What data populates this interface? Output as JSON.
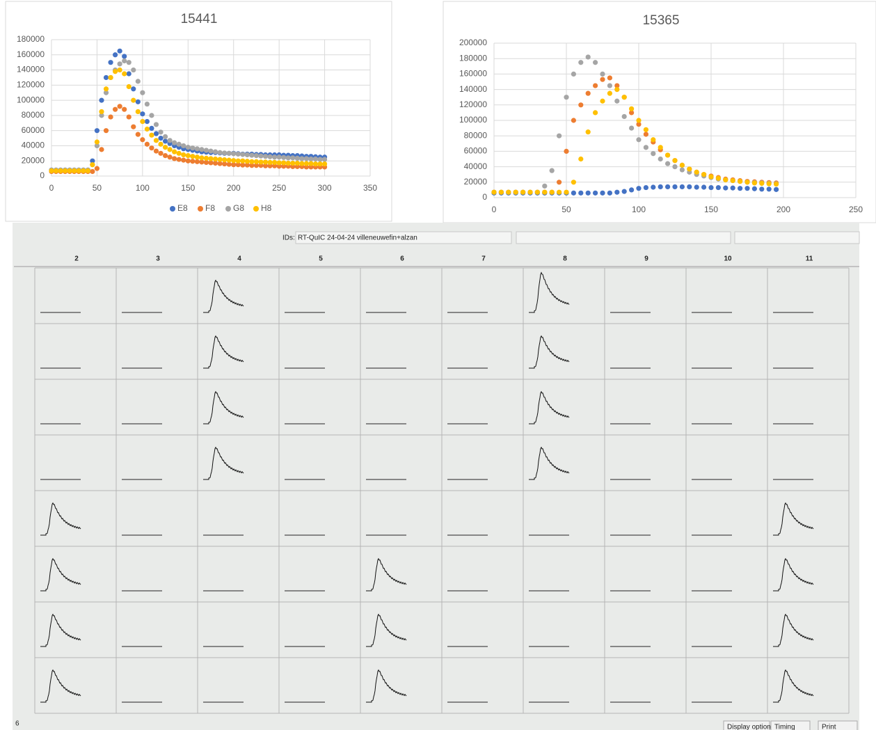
{
  "chart_data": [
    {
      "type": "scatter",
      "title": "15441",
      "x": [
        0,
        5,
        10,
        15,
        20,
        25,
        30,
        35,
        40,
        45,
        50,
        55,
        60,
        65,
        70,
        75,
        80,
        85,
        90,
        95,
        100,
        105,
        110,
        115,
        120,
        125,
        130,
        135,
        140,
        145,
        150,
        155,
        160,
        165,
        170,
        175,
        180,
        185,
        190,
        195,
        200,
        205,
        210,
        215,
        220,
        225,
        230,
        235,
        240,
        245,
        250,
        255,
        260,
        265,
        270,
        275,
        280,
        285,
        290,
        295,
        300
      ],
      "series": [
        {
          "name": "E8",
          "color": "#4472c4",
          "values": [
            8000,
            8000,
            8000,
            8000,
            8000,
            8000,
            8000,
            8000,
            8000,
            20000,
            60000,
            100000,
            130000,
            150000,
            160000,
            165000,
            158000,
            135000,
            115000,
            98000,
            82000,
            72000,
            63000,
            56000,
            50000,
            46000,
            43000,
            40000,
            38000,
            36000,
            35000,
            34000,
            33000,
            32000,
            31500,
            31000,
            31000,
            30500,
            30000,
            30000,
            30000,
            29500,
            29000,
            29000,
            29000,
            28500,
            28500,
            28000,
            28000,
            28000,
            28000,
            27500,
            27500,
            27000,
            27000,
            26500,
            26000,
            26000,
            25500,
            25000,
            25000
          ]
        },
        {
          "name": "F8",
          "color": "#ed7d31",
          "values": [
            6000,
            6000,
            6000,
            6000,
            6000,
            6000,
            6000,
            6000,
            6000,
            6000,
            10000,
            35000,
            60000,
            78000,
            88000,
            92000,
            88000,
            78000,
            65000,
            55000,
            48000,
            42000,
            37000,
            33000,
            30000,
            27000,
            25000,
            23000,
            22000,
            21000,
            20000,
            19500,
            19000,
            18500,
            18000,
            17500,
            17000,
            16500,
            16000,
            15500,
            15000,
            15000,
            14500,
            14500,
            14000,
            14000,
            14000,
            13500,
            13500,
            13500,
            13000,
            13000,
            13000,
            12500,
            12500,
            12500,
            12000,
            12000,
            12000,
            12000,
            12000
          ]
        },
        {
          "name": "G8",
          "color": "#a5a5a5",
          "values": [
            8000,
            8000,
            8000,
            8000,
            8000,
            8000,
            8000,
            8000,
            8000,
            15000,
            40000,
            80000,
            110000,
            130000,
            140000,
            148000,
            152000,
            150000,
            140000,
            125000,
            110000,
            95000,
            80000,
            68000,
            58000,
            52000,
            47000,
            44000,
            42000,
            40000,
            38000,
            37000,
            36000,
            35000,
            34000,
            33000,
            32000,
            31000,
            30500,
            30000,
            29500,
            29000,
            28500,
            28000,
            27500,
            27000,
            26500,
            26000,
            25500,
            25000,
            25000,
            24500,
            24000,
            24000,
            23500,
            23000,
            23000,
            22500,
            22500,
            22000,
            22000
          ]
        },
        {
          "name": "H8",
          "color": "#ffc000",
          "values": [
            7000,
            7000,
            7000,
            7000,
            7000,
            7000,
            7000,
            7000,
            7000,
            15000,
            45000,
            85000,
            115000,
            130000,
            138000,
            140000,
            135000,
            118000,
            100000,
            85000,
            72000,
            62000,
            54000,
            47000,
            42000,
            38000,
            35000,
            32000,
            30000,
            28000,
            27000,
            26000,
            25000,
            24000,
            23500,
            23000,
            22500,
            22000,
            21500,
            21000,
            20500,
            20000,
            20000,
            19500,
            19000,
            19000,
            18500,
            18500,
            18000,
            18000,
            17500,
            17500,
            17000,
            17000,
            17000,
            16500,
            16500,
            16500,
            16000,
            16000,
            16000
          ]
        }
      ],
      "xlim": [
        0,
        350
      ],
      "xticks": [
        0,
        50,
        100,
        150,
        200,
        250,
        300,
        350
      ],
      "ylim": [
        0,
        180000
      ],
      "yticks": [
        0,
        20000,
        40000,
        60000,
        80000,
        100000,
        120000,
        140000,
        160000,
        180000
      ],
      "grid": true,
      "legend": "bottom"
    },
    {
      "type": "scatter",
      "title": "15365",
      "x": [
        0,
        5,
        10,
        15,
        20,
        25,
        30,
        35,
        40,
        45,
        50,
        55,
        60,
        65,
        70,
        75,
        80,
        85,
        90,
        95,
        100,
        105,
        110,
        115,
        120,
        125,
        130,
        135,
        140,
        145,
        150,
        155,
        160,
        165,
        170,
        175,
        180,
        185,
        190,
        195
      ],
      "series": [
        {
          "color": "#4472c4",
          "values": [
            6000,
            6000,
            6000,
            6000,
            6000,
            6000,
            6000,
            6000,
            6000,
            6000,
            6000,
            6000,
            6000,
            6000,
            6000,
            6000,
            6000,
            7000,
            8000,
            10000,
            12000,
            13000,
            13500,
            14000,
            14000,
            14000,
            14000,
            14000,
            13500,
            13500,
            13000,
            13000,
            12500,
            12500,
            12000,
            12000,
            11500,
            11000,
            11000,
            10500
          ]
        },
        {
          "color": "#ed7d31",
          "values": [
            7000,
            7000,
            7000,
            7000,
            7000,
            7000,
            7000,
            7000,
            7000,
            20000,
            60000,
            100000,
            120000,
            135000,
            145000,
            153000,
            155000,
            145000,
            130000,
            110000,
            95000,
            82000,
            72000,
            62000,
            55000,
            48000,
            42000,
            37000,
            33000,
            30000,
            28000,
            26000,
            24000,
            23000,
            22000,
            21000,
            20500,
            20000,
            19500,
            19000
          ]
        },
        {
          "color": "#a5a5a5",
          "values": [
            7000,
            7000,
            7000,
            7000,
            7000,
            7000,
            7000,
            15000,
            35000,
            80000,
            130000,
            160000,
            175000,
            182000,
            175000,
            160000,
            145000,
            125000,
            105000,
            90000,
            75000,
            65000,
            57000,
            50000,
            44000,
            40000,
            36000,
            33000,
            30000,
            28000,
            26000,
            24000,
            23000,
            22000,
            21000,
            20000,
            19500,
            19000,
            18500,
            18000
          ]
        },
        {
          "color": "#ffc000",
          "values": [
            7000,
            7000,
            7000,
            7000,
            7000,
            7000,
            7000,
            7000,
            7000,
            7000,
            7000,
            20000,
            50000,
            85000,
            110000,
            125000,
            135000,
            140000,
            130000,
            115000,
            100000,
            88000,
            75000,
            65000,
            55000,
            48000,
            42000,
            37000,
            33000,
            30000,
            27000,
            25000,
            23000,
            22000,
            21000,
            20000,
            19000,
            18500,
            18000,
            17500
          ]
        }
      ],
      "xlim": [
        0,
        250
      ],
      "xticks": [
        0,
        50,
        100,
        150,
        200,
        250
      ],
      "ylim": [
        0,
        200000
      ],
      "yticks": [
        0,
        20000,
        40000,
        60000,
        80000,
        100000,
        120000,
        140000,
        160000,
        180000,
        200000
      ],
      "grid": true
    }
  ],
  "plate": {
    "ids_label": "IDs:",
    "ids_value": "RT-QuIC 24-04-24 villeneuwefin+alzan",
    "columns": [
      "2",
      "3",
      "4",
      "5",
      "6",
      "7",
      "8",
      "9",
      "10",
      "11"
    ],
    "row_label": "6",
    "buttons": [
      "Display options",
      "Timing",
      "Print"
    ]
  }
}
